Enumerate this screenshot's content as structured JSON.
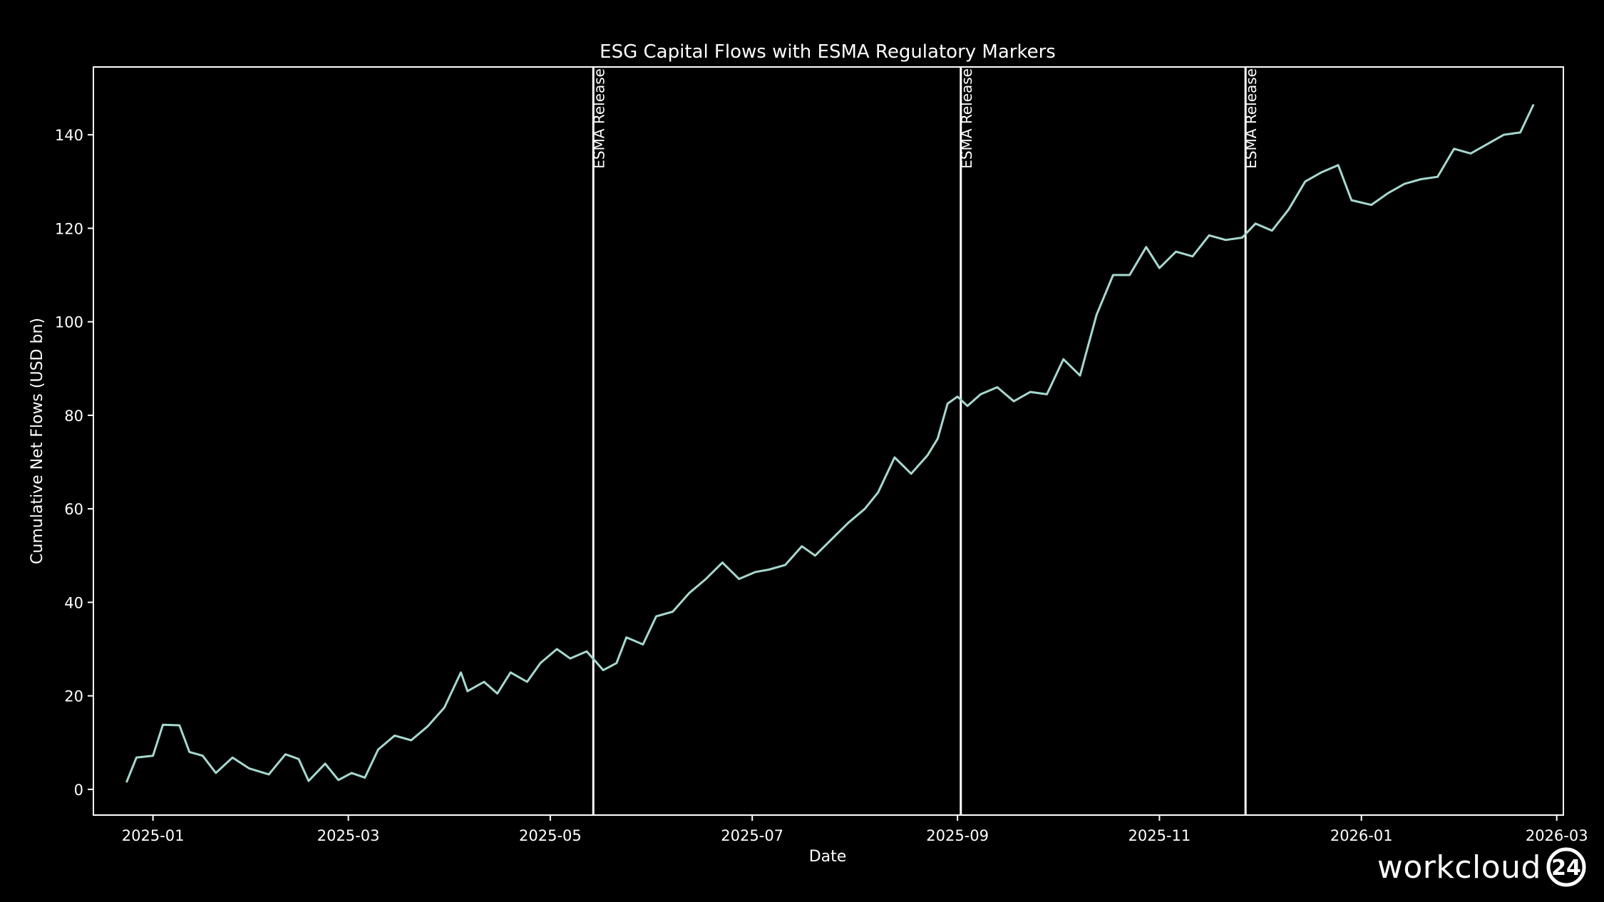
{
  "chart_data": {
    "type": "line",
    "title": "ESG Capital Flows with ESMA Regulatory Markers",
    "xlabel": "Date",
    "ylabel": "Cumulative Net Flows (USD bn)",
    "xlim": [
      "2024-12-14",
      "2026-03-03"
    ],
    "ylim": [
      -5.5,
      154.5
    ],
    "x_ticks": [
      "2025-01",
      "2025-03",
      "2025-05",
      "2025-07",
      "2025-09",
      "2025-11",
      "2026-01",
      "2026-03"
    ],
    "y_ticks": [
      0,
      20,
      40,
      60,
      80,
      100,
      120,
      140
    ],
    "grid": false,
    "line_color": "#a6d8cf",
    "series": [
      {
        "points": [
          [
            "2024-12-24",
            1.5
          ],
          [
            "2024-12-27",
            6.8
          ],
          [
            "2025-01-01",
            7.2
          ],
          [
            "2025-01-04",
            13.8
          ],
          [
            "2025-01-09",
            13.7
          ],
          [
            "2025-01-12",
            8.0
          ],
          [
            "2025-01-16",
            7.2
          ],
          [
            "2025-01-20",
            3.5
          ],
          [
            "2025-01-25",
            6.8
          ],
          [
            "2025-01-30",
            4.5
          ],
          [
            "2025-02-05",
            3.2
          ],
          [
            "2025-02-10",
            7.5
          ],
          [
            "2025-02-14",
            6.5
          ],
          [
            "2025-02-17",
            1.8
          ],
          [
            "2025-02-22",
            5.5
          ],
          [
            "2025-02-26",
            2.0
          ],
          [
            "2025-03-02",
            3.5
          ],
          [
            "2025-03-06",
            2.5
          ],
          [
            "2025-03-10",
            8.5
          ],
          [
            "2025-03-15",
            11.5
          ],
          [
            "2025-03-20",
            10.5
          ],
          [
            "2025-03-25",
            13.5
          ],
          [
            "2025-03-30",
            17.5
          ],
          [
            "2025-04-04",
            25.0
          ],
          [
            "2025-04-06",
            21.0
          ],
          [
            "2025-04-11",
            23.0
          ],
          [
            "2025-04-15",
            20.5
          ],
          [
            "2025-04-19",
            25.0
          ],
          [
            "2025-04-24",
            23.0
          ],
          [
            "2025-04-28",
            27.0
          ],
          [
            "2025-05-03",
            30.0
          ],
          [
            "2025-05-07",
            28.0
          ],
          [
            "2025-05-12",
            29.5
          ],
          [
            "2025-05-17",
            25.5
          ],
          [
            "2025-05-21",
            27.0
          ],
          [
            "2025-05-24",
            32.5
          ],
          [
            "2025-05-29",
            31.0
          ],
          [
            "2025-06-02",
            37.0
          ],
          [
            "2025-06-07",
            38.0
          ],
          [
            "2025-06-12",
            42.0
          ],
          [
            "2025-06-17",
            45.0
          ],
          [
            "2025-06-22",
            48.5
          ],
          [
            "2025-06-27",
            45.0
          ],
          [
            "2025-07-02",
            46.5
          ],
          [
            "2025-07-06",
            47.0
          ],
          [
            "2025-07-11",
            48.0
          ],
          [
            "2025-07-16",
            52.0
          ],
          [
            "2025-07-20",
            50.0
          ],
          [
            "2025-07-25",
            53.5
          ],
          [
            "2025-07-30",
            57.0
          ],
          [
            "2025-08-04",
            60.0
          ],
          [
            "2025-08-08",
            63.5
          ],
          [
            "2025-08-13",
            71.0
          ],
          [
            "2025-08-18",
            67.5
          ],
          [
            "2025-08-23",
            71.5
          ],
          [
            "2025-08-26",
            75.0
          ],
          [
            "2025-08-29",
            82.5
          ],
          [
            "2025-09-01",
            84.0
          ],
          [
            "2025-09-04",
            82.0
          ],
          [
            "2025-09-08",
            84.5
          ],
          [
            "2025-09-13",
            86.0
          ],
          [
            "2025-09-18",
            83.0
          ],
          [
            "2025-09-23",
            85.0
          ],
          [
            "2025-09-28",
            84.5
          ],
          [
            "2025-10-03",
            92.0
          ],
          [
            "2025-10-08",
            88.5
          ],
          [
            "2025-10-13",
            101.5
          ],
          [
            "2025-10-18",
            110.0
          ],
          [
            "2025-10-23",
            110.0
          ],
          [
            "2025-10-28",
            116.0
          ],
          [
            "2025-11-01",
            111.5
          ],
          [
            "2025-11-06",
            115.0
          ],
          [
            "2025-11-11",
            114.0
          ],
          [
            "2025-11-16",
            118.5
          ],
          [
            "2025-11-21",
            117.5
          ],
          [
            "2025-11-26",
            118.0
          ],
          [
            "2025-11-30",
            121.0
          ],
          [
            "2025-12-05",
            119.5
          ],
          [
            "2025-12-10",
            124.0
          ],
          [
            "2025-12-15",
            130.0
          ],
          [
            "2025-12-20",
            132.0
          ],
          [
            "2025-12-25",
            133.5
          ],
          [
            "2025-12-29",
            126.0
          ],
          [
            "2026-01-04",
            125.0
          ],
          [
            "2026-01-09",
            127.5
          ],
          [
            "2026-01-14",
            129.5
          ],
          [
            "2026-01-19",
            130.5
          ],
          [
            "2026-01-24",
            131.0
          ],
          [
            "2026-01-29",
            137.0
          ],
          [
            "2026-02-03",
            136.0
          ],
          [
            "2026-02-08",
            138.0
          ],
          [
            "2026-02-13",
            140.0
          ],
          [
            "2026-02-18",
            140.5
          ],
          [
            "2026-02-22",
            146.5
          ]
        ]
      }
    ],
    "markers": [
      {
        "date": "2025-05-14",
        "label": "ESMA Release"
      },
      {
        "date": "2025-09-02",
        "label": "ESMA Release"
      },
      {
        "date": "2025-11-27",
        "label": "ESMA Release"
      }
    ]
  },
  "brand": {
    "text": "workcloud",
    "badge": "24"
  }
}
